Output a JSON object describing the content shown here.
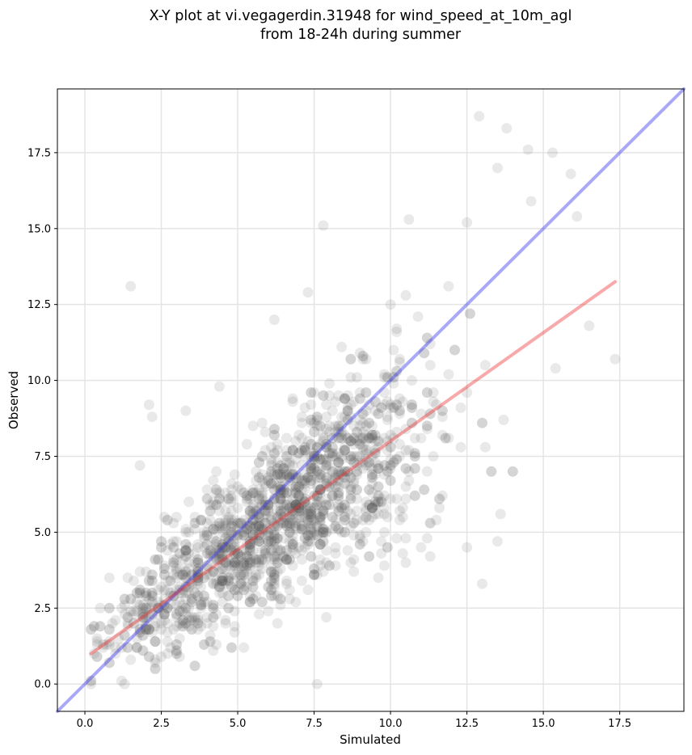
{
  "chart_data": {
    "type": "scatter",
    "title": "X-Y plot at vi.vegagerdin.31948 for wind_speed_at_10m_agl",
    "subtitle": "from 18-24h during summer",
    "xlabel": "Simulated",
    "ylabel": "Observed",
    "xlim": [
      -0.9,
      19.6
    ],
    "ylim": [
      -0.9,
      19.6
    ],
    "xticks": [
      "0.0",
      "2.5",
      "5.0",
      "7.5",
      "10.0",
      "12.5",
      "15.0",
      "17.5"
    ],
    "yticks": [
      "0.0",
      "2.5",
      "5.0",
      "7.5",
      "10.0",
      "12.5",
      "15.0",
      "17.5"
    ],
    "grid": true,
    "point_color": "#555555",
    "point_count": 1800,
    "lines": [
      {
        "role": "one-to-one",
        "color": "#3333ee",
        "x": [
          -0.9,
          19.6
        ],
        "y": [
          -0.9,
          19.6
        ]
      },
      {
        "role": "regression",
        "color": "#ee3333",
        "x": [
          0.2,
          17.35
        ],
        "y": [
          1.0,
          13.25
        ]
      }
    ],
    "notable_points": [
      {
        "x": 1.5,
        "y": 13.1
      },
      {
        "x": 12.9,
        "y": 18.7
      },
      {
        "x": 13.8,
        "y": 18.3
      },
      {
        "x": 15.3,
        "y": 17.5
      },
      {
        "x": 17.35,
        "y": 10.7
      },
      {
        "x": 7.6,
        "y": 0.0
      },
      {
        "x": 3.3,
        "y": 9.0
      },
      {
        "x": 2.1,
        "y": 9.2
      },
      {
        "x": 2.2,
        "y": 8.8
      },
      {
        "x": 13.0,
        "y": 3.3
      },
      {
        "x": 15.9,
        "y": 16.8
      },
      {
        "x": 14.5,
        "y": 17.6
      },
      {
        "x": 14.6,
        "y": 15.9
      },
      {
        "x": 13.5,
        "y": 17.0
      },
      {
        "x": 7.8,
        "y": 15.1
      },
      {
        "x": 10.6,
        "y": 15.3
      },
      {
        "x": 12.5,
        "y": 15.2
      },
      {
        "x": 16.1,
        "y": 15.4
      },
      {
        "x": 6.2,
        "y": 12.0
      },
      {
        "x": 7.3,
        "y": 12.9
      },
      {
        "x": 4.4,
        "y": 9.8
      },
      {
        "x": 13.5,
        "y": 4.7
      },
      {
        "x": 16.5,
        "y": 11.8
      },
      {
        "x": 9.8,
        "y": 3.9
      },
      {
        "x": 11.3,
        "y": 4.2
      },
      {
        "x": 12.5,
        "y": 4.5
      },
      {
        "x": 13.6,
        "y": 5.6
      },
      {
        "x": 0.2,
        "y": 0.0
      },
      {
        "x": 1.3,
        "y": 0.0
      },
      {
        "x": 1.8,
        "y": 7.2
      }
    ]
  }
}
